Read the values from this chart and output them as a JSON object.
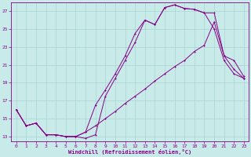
{
  "xlabel": "Windchill (Refroidissement éolien,°C)",
  "bg_color": "#c8ebe9",
  "grid_color": "#a8d4d2",
  "line_color": "#880088",
  "xlim": [
    -0.5,
    23.5
  ],
  "ylim": [
    12.5,
    28.0
  ],
  "xticks": [
    0,
    1,
    2,
    3,
    4,
    5,
    6,
    7,
    8,
    9,
    10,
    11,
    12,
    13,
    14,
    15,
    16,
    17,
    18,
    19,
    20,
    21,
    22,
    23
  ],
  "yticks": [
    13,
    15,
    17,
    19,
    21,
    23,
    25,
    27
  ],
  "line1_x": [
    0,
    1,
    2,
    3,
    4,
    5,
    6,
    7,
    8,
    9,
    10,
    11,
    12,
    13,
    14,
    15,
    16,
    17,
    18,
    19,
    20,
    21,
    22,
    23
  ],
  "line1_y": [
    16.0,
    14.2,
    14.5,
    13.2,
    13.2,
    13.0,
    13.0,
    12.8,
    13.2,
    17.5,
    19.5,
    21.5,
    23.5,
    26.0,
    25.5,
    27.4,
    27.7,
    27.3,
    27.2,
    26.8,
    26.8,
    22.0,
    20.5,
    19.5
  ],
  "line2_x": [
    0,
    1,
    2,
    3,
    4,
    5,
    6,
    7,
    8,
    9,
    10,
    11,
    12,
    13,
    14,
    15,
    16,
    17,
    18,
    19,
    20,
    21,
    22,
    23
  ],
  "line2_y": [
    16.0,
    14.2,
    14.5,
    13.2,
    13.2,
    13.0,
    13.0,
    13.5,
    16.5,
    18.2,
    20.0,
    22.0,
    24.5,
    26.0,
    25.5,
    27.4,
    27.7,
    27.3,
    27.2,
    26.8,
    25.0,
    21.5,
    20.0,
    19.5
  ],
  "line3_x": [
    0,
    1,
    2,
    3,
    4,
    5,
    6,
    7,
    8,
    9,
    10,
    11,
    12,
    13,
    14,
    15,
    16,
    17,
    18,
    19,
    20,
    21,
    22,
    23
  ],
  "line3_y": [
    16.0,
    14.2,
    14.5,
    13.2,
    13.2,
    13.0,
    13.0,
    13.5,
    14.2,
    15.0,
    15.8,
    16.7,
    17.5,
    18.3,
    19.2,
    20.0,
    20.8,
    21.5,
    22.5,
    23.2,
    25.8,
    22.0,
    21.5,
    19.7
  ]
}
